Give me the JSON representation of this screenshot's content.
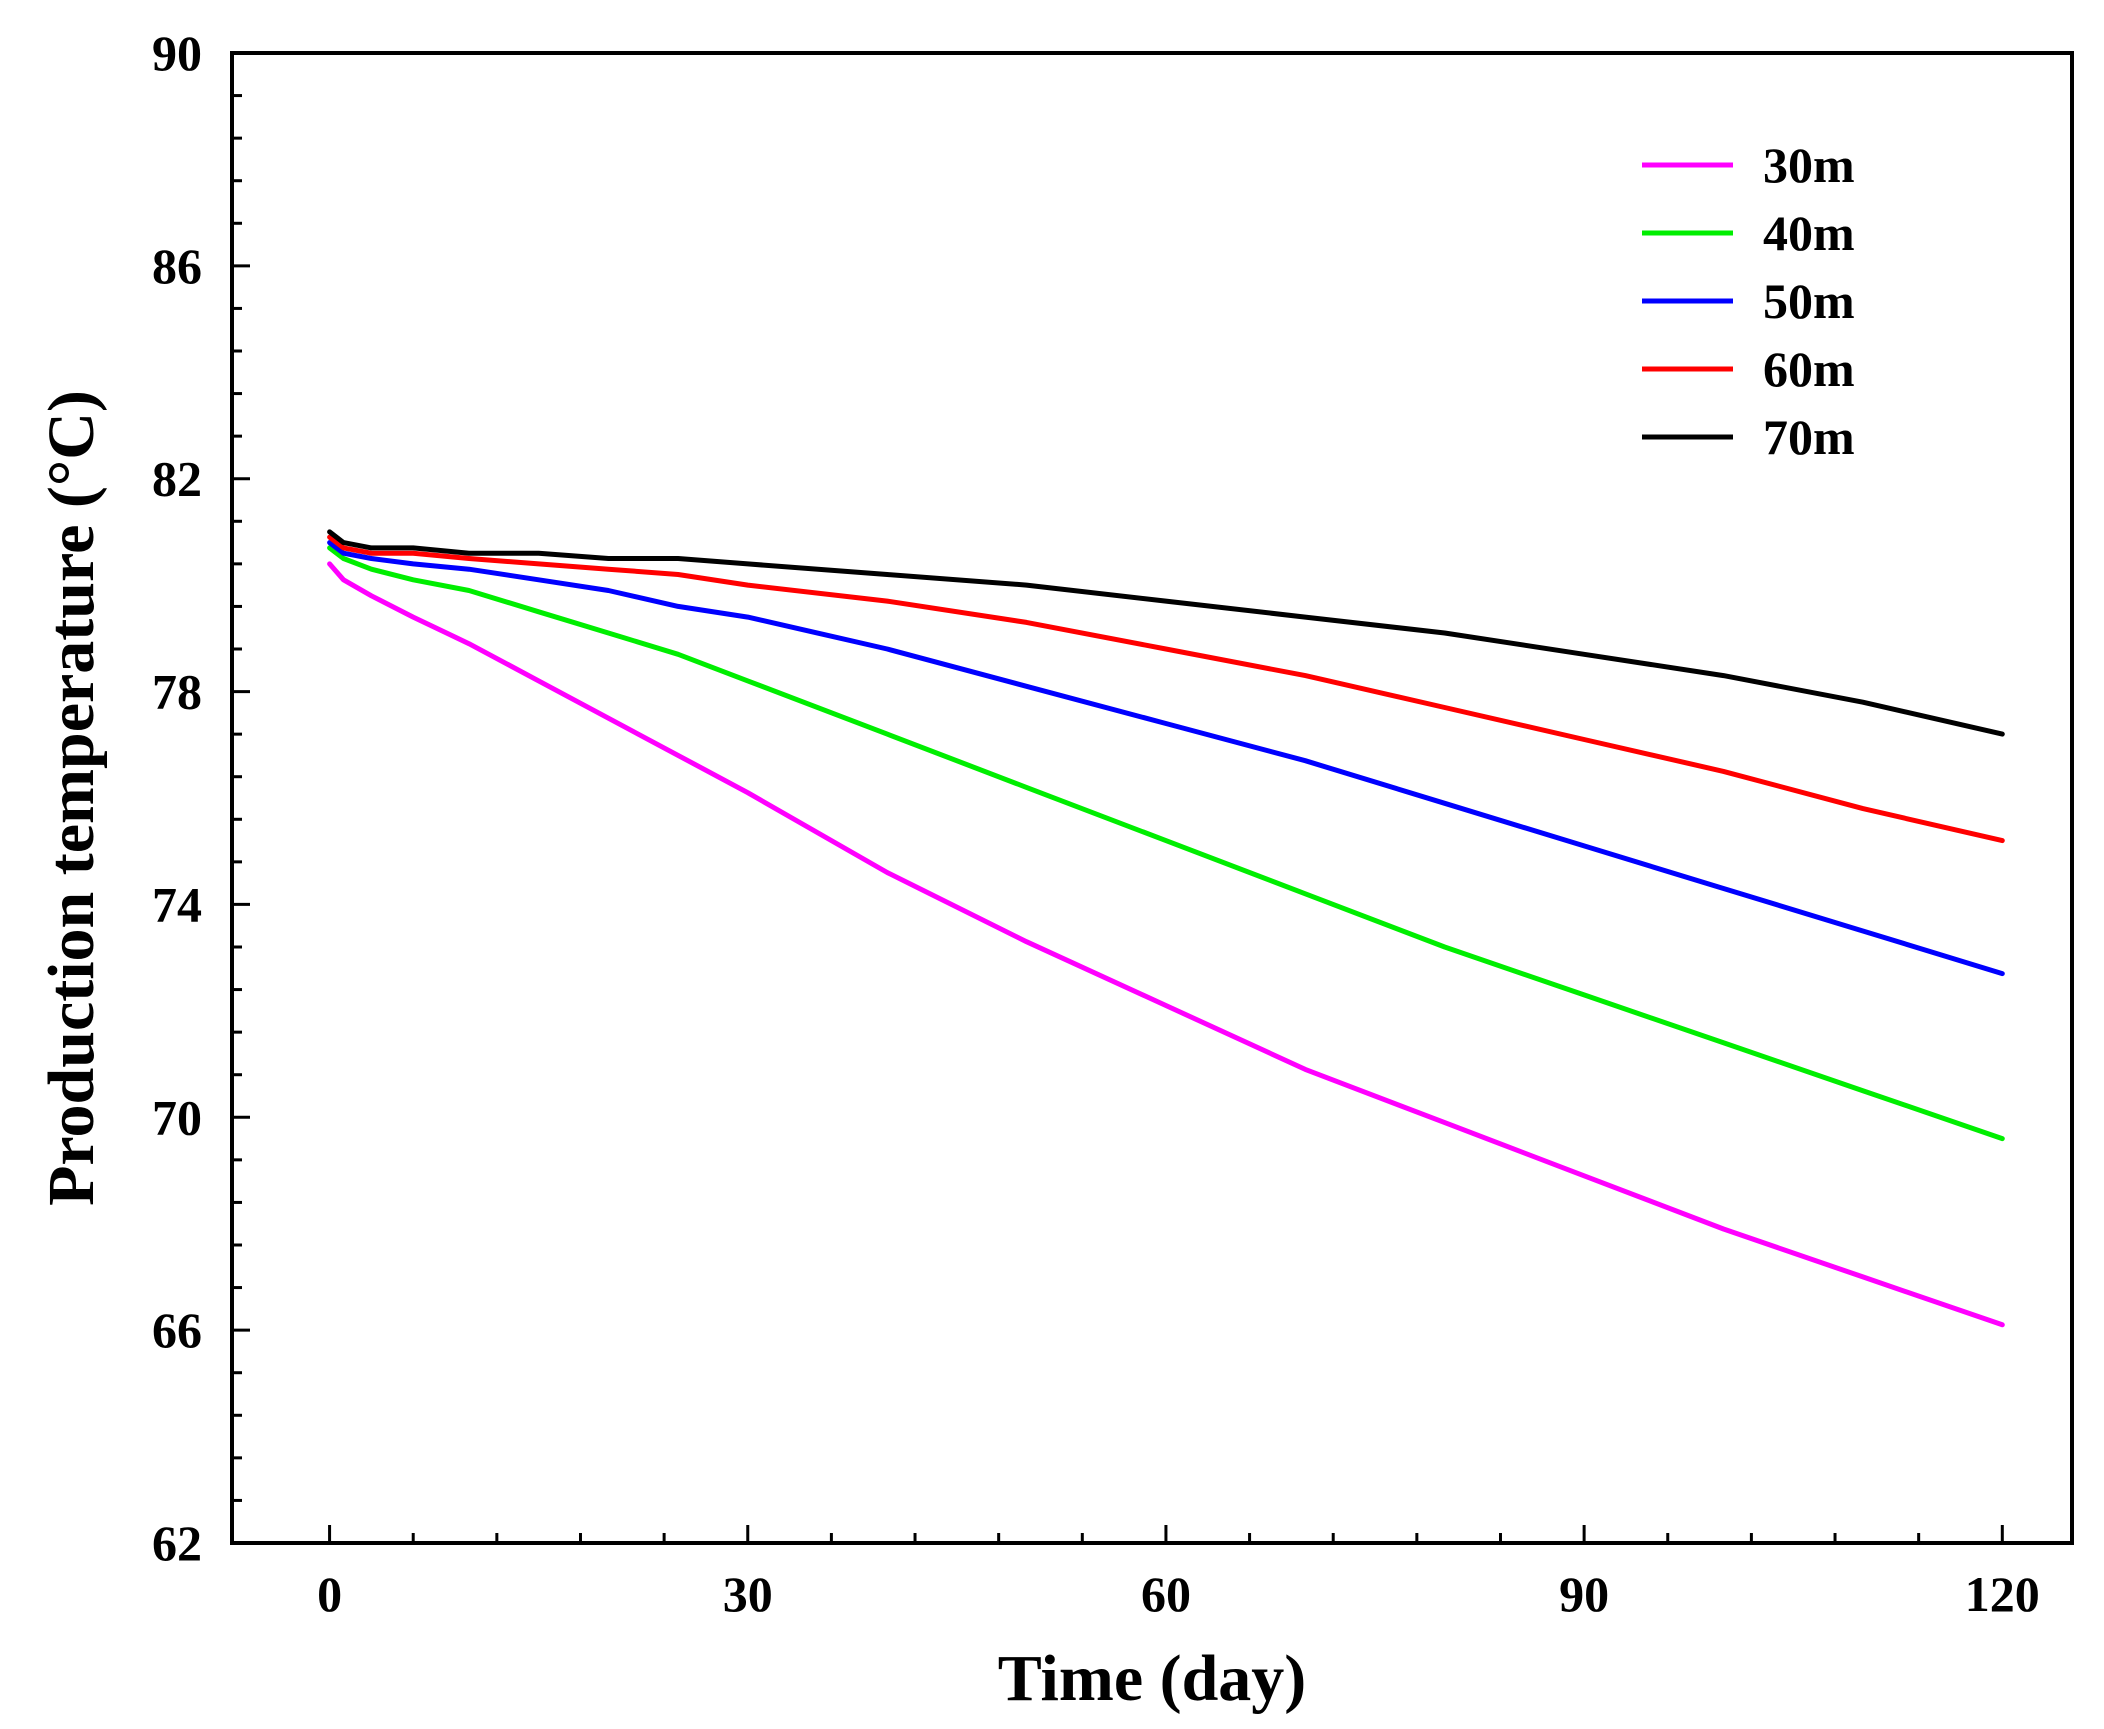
{
  "chart_data": {
    "type": "line",
    "title": "",
    "xlabel": "Time (day)",
    "ylabel": "Production temperature (°C)",
    "xlim": [
      -7,
      125
    ],
    "ylim": [
      62,
      90
    ],
    "xticks": [
      0,
      30,
      60,
      90,
      120
    ],
    "yticks": [
      62,
      66,
      70,
      74,
      78,
      82,
      86,
      90
    ],
    "xticks_minor_step": 6,
    "yticks_minor_step": 0.8,
    "legend_position": "top-right",
    "series": [
      {
        "name": "30m",
        "color": "#ff00ff",
        "x": [
          0,
          1,
          3,
          6,
          10,
          15,
          20,
          25,
          30,
          40,
          50,
          60,
          70,
          80,
          90,
          100,
          110,
          120
        ],
        "y": [
          80.4,
          80.1,
          79.8,
          79.4,
          78.9,
          78.2,
          77.5,
          76.8,
          76.1,
          74.6,
          73.3,
          72.1,
          70.9,
          69.9,
          68.9,
          67.9,
          67.0,
          66.1
        ]
      },
      {
        "name": "40m",
        "color": "#00ee00",
        "x": [
          0,
          1,
          3,
          6,
          10,
          15,
          20,
          25,
          30,
          40,
          50,
          60,
          70,
          80,
          90,
          100,
          110,
          120
        ],
        "y": [
          80.7,
          80.5,
          80.3,
          80.1,
          79.9,
          79.5,
          79.1,
          78.7,
          78.2,
          77.2,
          76.2,
          75.2,
          74.2,
          73.2,
          72.3,
          71.4,
          70.5,
          69.6
        ]
      },
      {
        "name": "50m",
        "color": "#0000ff",
        "x": [
          0,
          1,
          3,
          6,
          10,
          15,
          20,
          25,
          30,
          40,
          50,
          60,
          70,
          80,
          90,
          100,
          110,
          120
        ],
        "y": [
          80.8,
          80.6,
          80.5,
          80.4,
          80.3,
          80.1,
          79.9,
          79.6,
          79.4,
          78.8,
          78.1,
          77.4,
          76.7,
          75.9,
          75.1,
          74.3,
          73.5,
          72.7
        ]
      },
      {
        "name": "60m",
        "color": "#ff0000",
        "x": [
          0,
          1,
          3,
          6,
          10,
          15,
          20,
          25,
          30,
          40,
          50,
          60,
          70,
          80,
          90,
          100,
          110,
          120
        ],
        "y": [
          80.9,
          80.7,
          80.6,
          80.6,
          80.5,
          80.4,
          80.3,
          80.2,
          80.0,
          79.7,
          79.3,
          78.8,
          78.3,
          77.7,
          77.1,
          76.5,
          75.8,
          75.2
        ]
      },
      {
        "name": "70m",
        "color": "#000000",
        "x": [
          0,
          1,
          3,
          6,
          10,
          15,
          20,
          25,
          30,
          40,
          50,
          60,
          70,
          80,
          90,
          100,
          110,
          120
        ],
        "y": [
          81.0,
          80.8,
          80.7,
          80.7,
          80.6,
          80.6,
          80.5,
          80.5,
          80.4,
          80.2,
          80.0,
          79.7,
          79.4,
          79.1,
          78.7,
          78.3,
          77.8,
          77.2
        ]
      }
    ]
  }
}
